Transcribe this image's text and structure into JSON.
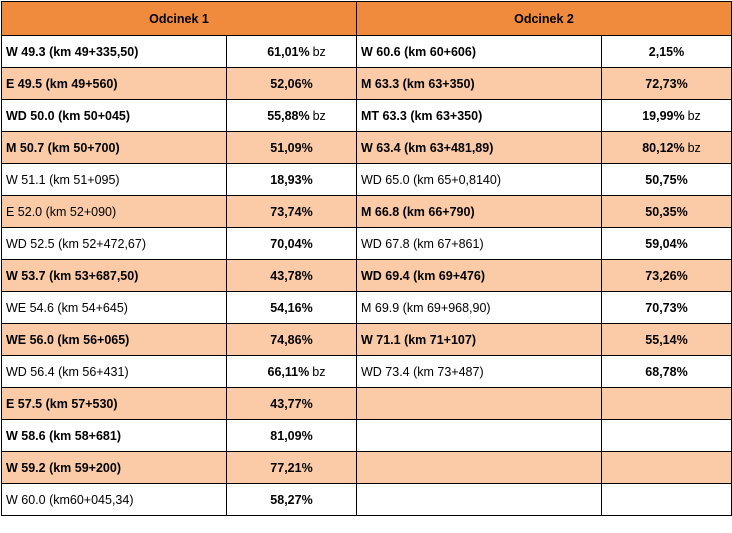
{
  "headers": [
    "Odcinek 1",
    "Odcinek 2"
  ],
  "rows": [
    {
      "l_name": "W 49.3 (km 49+335,50)",
      "l_val": "61,01%",
      "l_note": "bz",
      "r_name": "W 60.6 (km 60+606)",
      "r_val": "2,15%",
      "r_note": ""
    },
    {
      "l_name": "E 49.5 (km 49+560)",
      "l_val": "52,06%",
      "l_note": "",
      "r_name": "M 63.3 (km 63+350)",
      "r_val": "72,73%",
      "r_note": ""
    },
    {
      "l_name": "WD 50.0 (km 50+045)",
      "l_val": "55,88%",
      "l_note": "bz",
      "r_name": "MT 63.3 (km 63+350)",
      "r_val": "19,99%",
      "r_note": "bz"
    },
    {
      "l_name": "M 50.7 (km 50+700)",
      "l_val": "51,09%",
      "l_note": "",
      "r_name": "W 63.4 (km 63+481,89)",
      "r_val": "80,12%",
      "r_note": "bz"
    },
    {
      "l_name": "W 51.1 (km 51+095)",
      "l_val": "18,93%",
      "l_note": "",
      "r_name": "WD 65.0 (km 65+0,8140)",
      "r_val": "50,75%",
      "r_note": ""
    },
    {
      "l_name": "E 52.0 (km 52+090)",
      "l_val": "73,74%",
      "l_note": "",
      "r_name": "M 66.8 (km 66+790)",
      "r_val": "50,35%",
      "r_note": ""
    },
    {
      "l_name": "WD 52.5 (km 52+472,67)",
      "l_val": "70,04%",
      "l_note": "",
      "r_name": "WD 67.8 (km 67+861)",
      "r_val": "59,04%",
      "r_note": ""
    },
    {
      "l_name": "W 53.7 (km 53+687,50)",
      "l_val": "43,78%",
      "l_note": "",
      "r_name": "WD 69.4 (km 69+476)",
      "r_val": "73,26%",
      "r_note": ""
    },
    {
      "l_name": "WE 54.6 (km 54+645)",
      "l_val": "54,16%",
      "l_note": "",
      "r_name": "M 69.9 (km 69+968,90)",
      "r_val": "70,73%",
      "r_note": ""
    },
    {
      "l_name": "WE 56.0 (km 56+065)",
      "l_val": "74,86%",
      "l_note": "",
      "r_name": "W 71.1 (km 71+107)",
      "r_val": "55,14%",
      "r_note": ""
    },
    {
      "l_name": "WD 56.4 (km 56+431)",
      "l_val": "66,11%",
      "l_note": "bz",
      "r_name": "WD 73.4 (km 73+487)",
      "r_val": "68,78%",
      "r_note": ""
    },
    {
      "l_name": "E 57.5 (km 57+530)",
      "l_val": "43,77%",
      "l_note": "",
      "r_name": "",
      "r_val": "",
      "r_note": ""
    },
    {
      "l_name": "W 58.6 (km 58+681)",
      "l_val": "81,09%",
      "l_note": "",
      "r_name": "",
      "r_val": "",
      "r_note": ""
    },
    {
      "l_name": "W 59.2 (km 59+200)",
      "l_val": "77,21%",
      "l_note": "",
      "r_name": "",
      "r_val": "",
      "r_note": ""
    },
    {
      "l_name": "W 60.0 (km60+045,34)",
      "l_val": "58,27%",
      "l_note": "",
      "r_name": "",
      "r_val": "",
      "r_note": ""
    }
  ],
  "colors": {
    "header": "#f08a3c",
    "alt_row": "#fbcaa6"
  }
}
